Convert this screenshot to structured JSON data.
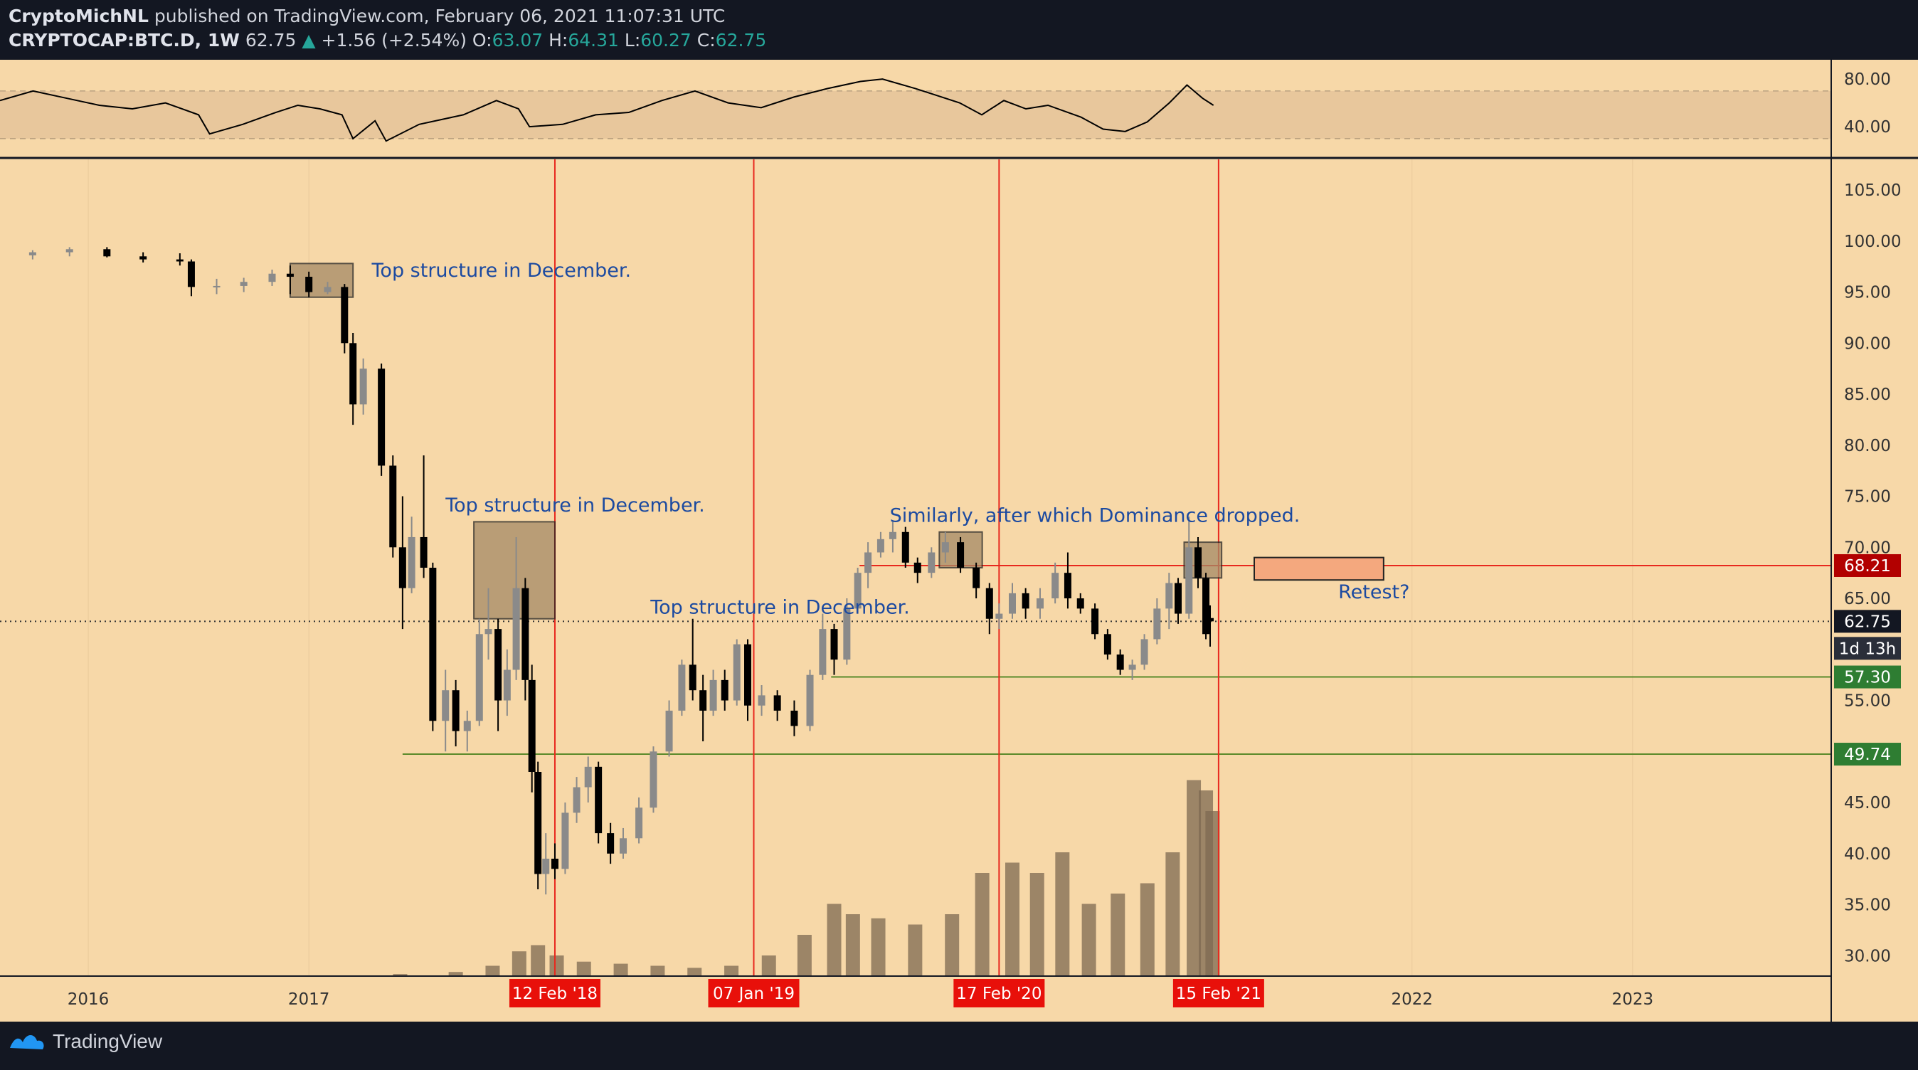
{
  "header": {
    "author": "CryptoMichNL",
    "published_text": "published on TradingView.com, February 06, 2021 11:07:31 UTC",
    "symbol": "CRYPTOCAP:BTC.D, 1W",
    "last": "62.75",
    "change_arrow": "▲",
    "change": "+1.56 (+2.54%)",
    "o_label": "O:",
    "o_value": "63.07",
    "h_label": "H:",
    "h_value": "64.31",
    "l_label": "L:",
    "l_value": "60.27",
    "c_label": "C:",
    "c_value": "62.75"
  },
  "footer": {
    "brand": "TradingView",
    "logo_icon": "tradingview-logo-icon"
  },
  "colors": {
    "background": "#f7d8a8",
    "rsi_band": "#e8c79c",
    "candle_up": "#8a8a8a",
    "candle_down": "#000000",
    "red_line": "#e8281e",
    "green_line": "#5a8a2a",
    "annotation_text": "#1c4aa0",
    "box_fill": "#a58a66",
    "retest_fill": "#f4a87e"
  },
  "chart_data": {
    "type": "candlestick",
    "symbol": "CRYPTOCAP:BTC.D",
    "interval": "1W",
    "ylim": [
      28,
      108
    ],
    "y_ticks": [
      "105.00",
      "100.00",
      "95.00",
      "90.00",
      "85.00",
      "80.00",
      "75.00",
      "70.00",
      "65.00",
      "55.00",
      "45.00",
      "40.00",
      "35.00",
      "30.00"
    ],
    "x_ticks": [
      "2016",
      "2017",
      "2022",
      "2023"
    ],
    "x_tick_years": [
      2016,
      2017,
      2022,
      2023
    ],
    "x_date_labels": [
      {
        "label": "12 Feb '18",
        "date": "2018-02-12"
      },
      {
        "label": "07 Jan '19",
        "date": "2019-01-07"
      },
      {
        "label": "17 Feb '20",
        "date": "2020-02-17"
      },
      {
        "label": "15 Feb '21",
        "date": "2021-02-15"
      }
    ],
    "price_labels": [
      {
        "label": "68.21",
        "value": 68.21,
        "color": "#b20000"
      },
      {
        "label": "62.75",
        "value": 62.75,
        "color": "#131722"
      },
      {
        "label": "57.30",
        "value": 57.3,
        "color": "#2e7d32"
      },
      {
        "label": "49.74",
        "value": 49.74,
        "color": "#2e7d32"
      }
    ],
    "countdown": "1d 13h",
    "horizontal_lines": [
      {
        "value": 68.21,
        "from": "2019-07-01",
        "color": "#e8281e"
      },
      {
        "value": 57.3,
        "from": "2019-05-15",
        "color": "#5a8a2a"
      },
      {
        "value": 49.74,
        "from": "2017-06-05",
        "color": "#5a8a2a"
      }
    ],
    "dotted_line": 62.75,
    "rsi": {
      "ylim": [
        15,
        95
      ],
      "ticks": [
        "80.00",
        "40.00"
      ],
      "band": [
        30,
        70
      ],
      "points": [
        [
          2015.6,
          62
        ],
        [
          2015.75,
          70
        ],
        [
          2015.9,
          64
        ],
        [
          2016.05,
          58
        ],
        [
          2016.2,
          55
        ],
        [
          2016.35,
          60
        ],
        [
          2016.5,
          50
        ],
        [
          2016.55,
          34
        ],
        [
          2016.7,
          42
        ],
        [
          2016.85,
          52
        ],
        [
          2016.95,
          58
        ],
        [
          2017.05,
          55
        ],
        [
          2017.15,
          50
        ],
        [
          2017.2,
          30
        ],
        [
          2017.3,
          45
        ],
        [
          2017.35,
          28
        ],
        [
          2017.5,
          42
        ],
        [
          2017.7,
          50
        ],
        [
          2017.85,
          62
        ],
        [
          2017.95,
          55
        ],
        [
          2018.0,
          40
        ],
        [
          2018.15,
          42
        ],
        [
          2018.3,
          50
        ],
        [
          2018.45,
          52
        ],
        [
          2018.6,
          62
        ],
        [
          2018.75,
          70
        ],
        [
          2018.9,
          60
        ],
        [
          2019.05,
          56
        ],
        [
          2019.2,
          65
        ],
        [
          2019.35,
          72
        ],
        [
          2019.5,
          78
        ],
        [
          2019.6,
          80
        ],
        [
          2019.75,
          72
        ],
        [
          2019.85,
          66
        ],
        [
          2019.95,
          60
        ],
        [
          2020.05,
          50
        ],
        [
          2020.15,
          62
        ],
        [
          2020.25,
          55
        ],
        [
          2020.35,
          58
        ],
        [
          2020.5,
          48
        ],
        [
          2020.6,
          38
        ],
        [
          2020.7,
          36
        ],
        [
          2020.8,
          44
        ],
        [
          2020.9,
          60
        ],
        [
          2020.98,
          75
        ],
        [
          2021.05,
          64
        ],
        [
          2021.1,
          58
        ]
      ]
    },
    "candles": [
      {
        "date": "2015-08-01",
        "o": 98.5,
        "h": 99.0,
        "l": 98.0,
        "c": 98.6
      },
      {
        "date": "2015-10-01",
        "o": 98.6,
        "h": 99.1,
        "l": 98.2,
        "c": 98.9
      },
      {
        "date": "2015-12-01",
        "o": 98.9,
        "h": 99.4,
        "l": 98.5,
        "c": 99.2
      },
      {
        "date": "2016-02-01",
        "o": 99.2,
        "h": 99.4,
        "l": 98.4,
        "c": 98.5
      },
      {
        "date": "2016-04-01",
        "o": 98.5,
        "h": 98.9,
        "l": 97.9,
        "c": 98.2
      },
      {
        "date": "2016-06-01",
        "o": 98.2,
        "h": 98.8,
        "l": 97.6,
        "c": 98.0
      },
      {
        "date": "2016-06-20",
        "o": 98.0,
        "h": 98.2,
        "l": 94.6,
        "c": 95.5
      },
      {
        "date": "2016-08-01",
        "o": 95.5,
        "h": 96.3,
        "l": 94.8,
        "c": 95.6
      },
      {
        "date": "2016-09-15",
        "o": 95.6,
        "h": 96.4,
        "l": 95.0,
        "c": 96.0
      },
      {
        "date": "2016-11-01",
        "o": 96.0,
        "h": 97.2,
        "l": 95.6,
        "c": 96.8
      },
      {
        "date": "2016-12-01",
        "o": 96.8,
        "h": 97.6,
        "l": 94.8,
        "c": 96.5
      },
      {
        "date": "2017-01-01",
        "o": 96.5,
        "h": 97.0,
        "l": 94.5,
        "c": 95.0
      },
      {
        "date": "2017-02-01",
        "o": 95.0,
        "h": 96.0,
        "l": 94.8,
        "c": 95.5
      },
      {
        "date": "2017-03-01",
        "o": 95.5,
        "h": 95.8,
        "l": 89.0,
        "c": 90.0
      },
      {
        "date": "2017-03-15",
        "o": 90.0,
        "h": 91.0,
        "l": 82.0,
        "c": 84.0
      },
      {
        "date": "2017-04-01",
        "o": 84.0,
        "h": 88.5,
        "l": 83.0,
        "c": 87.5
      },
      {
        "date": "2017-05-01",
        "o": 87.5,
        "h": 88.0,
        "l": 77.0,
        "c": 78.0
      },
      {
        "date": "2017-05-20",
        "o": 78.0,
        "h": 79.0,
        "l": 69.0,
        "c": 70.0
      },
      {
        "date": "2017-06-05",
        "o": 70.0,
        "h": 75.0,
        "l": 62.0,
        "c": 66.0
      },
      {
        "date": "2017-06-20",
        "o": 66.0,
        "h": 73.0,
        "l": 65.5,
        "c": 71.0
      },
      {
        "date": "2017-07-10",
        "o": 71.0,
        "h": 79.0,
        "l": 67.0,
        "c": 68.0
      },
      {
        "date": "2017-07-25",
        "o": 68.0,
        "h": 68.5,
        "l": 52.0,
        "c": 53.0
      },
      {
        "date": "2017-08-15",
        "o": 53.0,
        "h": 58.0,
        "l": 50.0,
        "c": 56.0
      },
      {
        "date": "2017-09-01",
        "o": 56.0,
        "h": 57.0,
        "l": 50.5,
        "c": 52.0
      },
      {
        "date": "2017-09-20",
        "o": 52.0,
        "h": 54.0,
        "l": 50.0,
        "c": 53.0
      },
      {
        "date": "2017-10-10",
        "o": 53.0,
        "h": 63.0,
        "l": 52.5,
        "c": 61.5
      },
      {
        "date": "2017-10-25",
        "o": 61.5,
        "h": 66.0,
        "l": 59.0,
        "c": 62.0
      },
      {
        "date": "2017-11-10",
        "o": 62.0,
        "h": 63.0,
        "l": 52.0,
        "c": 55.0
      },
      {
        "date": "2017-11-25",
        "o": 55.0,
        "h": 60.0,
        "l": 53.5,
        "c": 58.0
      },
      {
        "date": "2017-12-10",
        "o": 58.0,
        "h": 71.0,
        "l": 57.0,
        "c": 66.0
      },
      {
        "date": "2017-12-25",
        "o": 66.0,
        "h": 67.0,
        "l": 55.0,
        "c": 57.0
      },
      {
        "date": "2018-01-05",
        "o": 57.0,
        "h": 58.5,
        "l": 46.0,
        "c": 48.0
      },
      {
        "date": "2018-01-15",
        "o": 48.0,
        "h": 49.0,
        "l": 36.5,
        "c": 38.0
      },
      {
        "date": "2018-01-28",
        "o": 38.0,
        "h": 42.0,
        "l": 36.0,
        "c": 39.5
      },
      {
        "date": "2018-02-12",
        "o": 39.5,
        "h": 41.0,
        "l": 37.5,
        "c": 38.5
      },
      {
        "date": "2018-03-01",
        "o": 38.5,
        "h": 45.0,
        "l": 38.0,
        "c": 44.0
      },
      {
        "date": "2018-03-20",
        "o": 44.0,
        "h": 47.5,
        "l": 43.0,
        "c": 46.5
      },
      {
        "date": "2018-04-08",
        "o": 46.5,
        "h": 49.5,
        "l": 45.0,
        "c": 48.5
      },
      {
        "date": "2018-04-25",
        "o": 48.5,
        "h": 49.0,
        "l": 41.0,
        "c": 42.0
      },
      {
        "date": "2018-05-15",
        "o": 42.0,
        "h": 43.0,
        "l": 39.0,
        "c": 40.0
      },
      {
        "date": "2018-06-05",
        "o": 40.0,
        "h": 42.5,
        "l": 39.5,
        "c": 41.5
      },
      {
        "date": "2018-07-01",
        "o": 41.5,
        "h": 45.5,
        "l": 41.0,
        "c": 44.5
      },
      {
        "date": "2018-07-25",
        "o": 44.5,
        "h": 50.5,
        "l": 44.0,
        "c": 50.0
      },
      {
        "date": "2018-08-20",
        "o": 50.0,
        "h": 55.0,
        "l": 49.5,
        "c": 54.0
      },
      {
        "date": "2018-09-10",
        "o": 54.0,
        "h": 59.0,
        "l": 53.5,
        "c": 58.5
      },
      {
        "date": "2018-09-28",
        "o": 58.5,
        "h": 63.0,
        "l": 55.0,
        "c": 56.0
      },
      {
        "date": "2018-10-15",
        "o": 56.0,
        "h": 57.5,
        "l": 51.0,
        "c": 54.0
      },
      {
        "date": "2018-11-01",
        "o": 54.0,
        "h": 58.0,
        "l": 53.5,
        "c": 57.0
      },
      {
        "date": "2018-11-20",
        "o": 57.0,
        "h": 58.0,
        "l": 54.0,
        "c": 55.0
      },
      {
        "date": "2018-12-10",
        "o": 55.0,
        "h": 61.0,
        "l": 54.5,
        "c": 60.5
      },
      {
        "date": "2018-12-28",
        "o": 60.5,
        "h": 61.0,
        "l": 53.0,
        "c": 54.5
      },
      {
        "date": "2019-01-20",
        "o": 54.5,
        "h": 56.5,
        "l": 53.5,
        "c": 55.5
      },
      {
        "date": "2019-02-15",
        "o": 55.5,
        "h": 56.0,
        "l": 53.0,
        "c": 54.0
      },
      {
        "date": "2019-03-15",
        "o": 54.0,
        "h": 55.0,
        "l": 51.5,
        "c": 52.5
      },
      {
        "date": "2019-04-10",
        "o": 52.5,
        "h": 58.0,
        "l": 52.0,
        "c": 57.5
      },
      {
        "date": "2019-05-01",
        "o": 57.5,
        "h": 63.5,
        "l": 57.0,
        "c": 62.0
      },
      {
        "date": "2019-05-20",
        "o": 62.0,
        "h": 62.5,
        "l": 57.5,
        "c": 59.0
      },
      {
        "date": "2019-06-10",
        "o": 59.0,
        "h": 65.0,
        "l": 58.5,
        "c": 64.0
      },
      {
        "date": "2019-06-28",
        "o": 64.0,
        "h": 68.0,
        "l": 63.5,
        "c": 67.5
      },
      {
        "date": "2019-07-15",
        "o": 67.5,
        "h": 70.5,
        "l": 66.0,
        "c": 69.5
      },
      {
        "date": "2019-08-05",
        "o": 69.5,
        "h": 71.5,
        "l": 69.0,
        "c": 70.8
      },
      {
        "date": "2019-08-25",
        "o": 70.8,
        "h": 72.5,
        "l": 69.5,
        "c": 71.5
      },
      {
        "date": "2019-09-15",
        "o": 71.5,
        "h": 72.0,
        "l": 68.0,
        "c": 68.5
      },
      {
        "date": "2019-10-05",
        "o": 68.5,
        "h": 69.0,
        "l": 66.5,
        "c": 67.5
      },
      {
        "date": "2019-10-28",
        "o": 67.5,
        "h": 70.0,
        "l": 67.0,
        "c": 69.5
      },
      {
        "date": "2019-11-20",
        "o": 69.5,
        "h": 71.5,
        "l": 68.5,
        "c": 70.5
      },
      {
        "date": "2019-12-15",
        "o": 70.5,
        "h": 71.0,
        "l": 67.5,
        "c": 68.0
      },
      {
        "date": "2020-01-10",
        "o": 68.0,
        "h": 68.5,
        "l": 65.0,
        "c": 66.0
      },
      {
        "date": "2020-02-01",
        "o": 66.0,
        "h": 66.5,
        "l": 61.5,
        "c": 63.0
      },
      {
        "date": "2020-02-17",
        "o": 63.0,
        "h": 64.5,
        "l": 62.0,
        "c": 63.5
      },
      {
        "date": "2020-03-10",
        "o": 63.5,
        "h": 66.5,
        "l": 63.0,
        "c": 65.5
      },
      {
        "date": "2020-04-01",
        "o": 65.5,
        "h": 66.0,
        "l": 63.0,
        "c": 64.0
      },
      {
        "date": "2020-04-25",
        "o": 64.0,
        "h": 66.0,
        "l": 63.0,
        "c": 65.0
      },
      {
        "date": "2020-05-20",
        "o": 65.0,
        "h": 68.5,
        "l": 64.5,
        "c": 67.5
      },
      {
        "date": "2020-06-10",
        "o": 67.5,
        "h": 69.5,
        "l": 64.0,
        "c": 65.0
      },
      {
        "date": "2020-07-01",
        "o": 65.0,
        "h": 65.5,
        "l": 63.5,
        "c": 64.0
      },
      {
        "date": "2020-07-25",
        "o": 64.0,
        "h": 64.5,
        "l": 61.0,
        "c": 61.5
      },
      {
        "date": "2020-08-15",
        "o": 61.5,
        "h": 62.0,
        "l": 59.0,
        "c": 59.5
      },
      {
        "date": "2020-09-05",
        "o": 59.5,
        "h": 60.0,
        "l": 57.5,
        "c": 58.0
      },
      {
        "date": "2020-09-25",
        "o": 58.0,
        "h": 59.0,
        "l": 57.0,
        "c": 58.5
      },
      {
        "date": "2020-10-15",
        "o": 58.5,
        "h": 61.5,
        "l": 58.0,
        "c": 61.0
      },
      {
        "date": "2020-11-05",
        "o": 61.0,
        "h": 65.0,
        "l": 60.5,
        "c": 64.0
      },
      {
        "date": "2020-11-25",
        "o": 64.0,
        "h": 67.5,
        "l": 62.0,
        "c": 66.5
      },
      {
        "date": "2020-12-10",
        "o": 66.5,
        "h": 67.0,
        "l": 62.5,
        "c": 63.5
      },
      {
        "date": "2020-12-28",
        "o": 63.5,
        "h": 73.0,
        "l": 63.0,
        "c": 70.0
      },
      {
        "date": "2021-01-12",
        "o": 70.0,
        "h": 71.0,
        "l": 66.0,
        "c": 67.0
      },
      {
        "date": "2021-01-25",
        "o": 67.0,
        "h": 67.5,
        "l": 61.0,
        "c": 61.5
      },
      {
        "date": "2021-02-01",
        "o": 63.07,
        "h": 64.31,
        "l": 60.27,
        "c": 62.75
      }
    ],
    "volume": [
      {
        "date": "2017-06-01",
        "v": 0.1
      },
      {
        "date": "2017-09-01",
        "v": 0.2
      },
      {
        "date": "2017-11-01",
        "v": 0.5
      },
      {
        "date": "2017-12-15",
        "v": 1.2
      },
      {
        "date": "2018-01-15",
        "v": 1.5
      },
      {
        "date": "2018-02-15",
        "v": 1.0
      },
      {
        "date": "2018-04-01",
        "v": 0.7
      },
      {
        "date": "2018-06-01",
        "v": 0.6
      },
      {
        "date": "2018-08-01",
        "v": 0.5
      },
      {
        "date": "2018-10-01",
        "v": 0.4
      },
      {
        "date": "2018-12-01",
        "v": 0.5
      },
      {
        "date": "2019-02-01",
        "v": 1.0
      },
      {
        "date": "2019-04-01",
        "v": 2.0
      },
      {
        "date": "2019-05-20",
        "v": 3.5
      },
      {
        "date": "2019-06-20",
        "v": 3.0
      },
      {
        "date": "2019-08-01",
        "v": 2.8
      },
      {
        "date": "2019-10-01",
        "v": 2.5
      },
      {
        "date": "2019-12-01",
        "v": 3.0
      },
      {
        "date": "2020-01-20",
        "v": 5.0
      },
      {
        "date": "2020-03-10",
        "v": 5.5
      },
      {
        "date": "2020-04-20",
        "v": 5.0
      },
      {
        "date": "2020-06-01",
        "v": 6.0
      },
      {
        "date": "2020-07-15",
        "v": 3.5
      },
      {
        "date": "2020-09-01",
        "v": 4.0
      },
      {
        "date": "2020-10-20",
        "v": 4.5
      },
      {
        "date": "2020-12-01",
        "v": 6.0
      },
      {
        "date": "2021-01-05",
        "v": 9.5
      },
      {
        "date": "2021-01-25",
        "v": 9.0
      },
      {
        "date": "2021-02-05",
        "v": 8.0
      }
    ],
    "boxes": [
      {
        "from": "2016-12-01",
        "to": "2017-03-15",
        "top": 97.8,
        "bottom": 94.5
      },
      {
        "from": "2017-10-01",
        "to": "2018-02-12",
        "top": 72.5,
        "bottom": 63.0
      },
      {
        "from": "2019-11-10",
        "to": "2020-01-20",
        "top": 71.5,
        "bottom": 68.0
      },
      {
        "from": "2020-12-20",
        "to": "2021-02-20",
        "top": 70.5,
        "bottom": 67.0
      }
    ],
    "retest_zone": {
      "from": "2021-04-15",
      "to": "2021-11-15",
      "top": 69.0,
      "bottom": 66.8
    },
    "annotations": [
      {
        "text": "Top structure in December.",
        "date": "2017-04-15",
        "value": 96.5
      },
      {
        "text": "Top structure in December.",
        "date": "2017-08-15",
        "value": 73.5
      },
      {
        "text": "Top structure in December.",
        "date": "2018-07-20",
        "value": 63.5
      },
      {
        "text": "Similarly, after which Dominance dropped.",
        "date": "2019-08-20",
        "value": 72.5
      },
      {
        "text": "Retest?",
        "date": "2021-09-01",
        "value": 65.0
      }
    ]
  }
}
